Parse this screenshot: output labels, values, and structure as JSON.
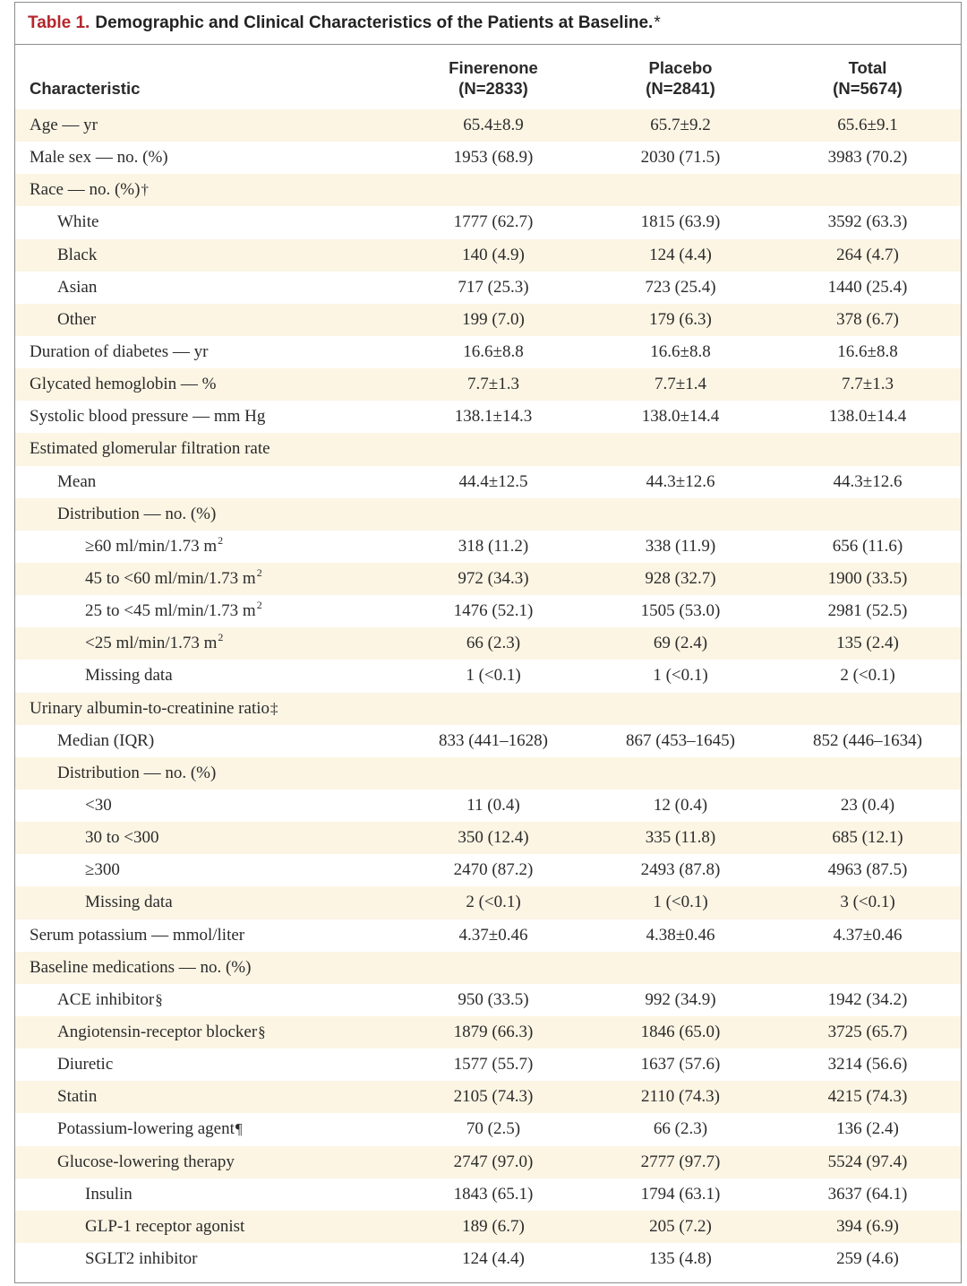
{
  "title": {
    "number": "Table 1.",
    "text": "Demographic and Clinical Characteristics of the Patients at Baseline.",
    "footnote_mark": "*"
  },
  "header": {
    "characteristic": "Characteristic",
    "columns": [
      {
        "name": "Finerenone",
        "n": "(N=2833)"
      },
      {
        "name": "Placebo",
        "n": "(N=2841)"
      },
      {
        "name": "Total",
        "n": "(N=5674)"
      }
    ]
  },
  "rows": [
    {
      "label": "Age — yr",
      "level": 0,
      "values": [
        "65.4±8.9",
        "65.7±9.2",
        "65.6±9.1"
      ]
    },
    {
      "label": "Male sex — no. (%)",
      "level": 0,
      "values": [
        "1953 (68.9)",
        "2030 (71.5)",
        "3983 (70.2)"
      ]
    },
    {
      "label": "Race — no. (%)",
      "mark": "†",
      "level": 0,
      "values": [
        "",
        "",
        ""
      ]
    },
    {
      "label": "White",
      "level": 1,
      "values": [
        "1777 (62.7)",
        "1815 (63.9)",
        "3592 (63.3)"
      ]
    },
    {
      "label": "Black",
      "level": 1,
      "values": [
        "140 (4.9)",
        "124 (4.4)",
        "264 (4.7)"
      ]
    },
    {
      "label": "Asian",
      "level": 1,
      "values": [
        "717 (25.3)",
        "723 (25.4)",
        "1440 (25.4)"
      ]
    },
    {
      "label": "Other",
      "level": 1,
      "values": [
        "199 (7.0)",
        "179 (6.3)",
        "378 (6.7)"
      ]
    },
    {
      "label": "Duration of diabetes — yr",
      "level": 0,
      "values": [
        "16.6±8.8",
        "16.6±8.8",
        "16.6±8.8"
      ]
    },
    {
      "label": "Glycated hemoglobin — %",
      "level": 0,
      "values": [
        "7.7±1.3",
        "7.7±1.4",
        "7.7±1.3"
      ]
    },
    {
      "label": "Systolic blood pressure — mm Hg",
      "level": 0,
      "values": [
        "138.1±14.3",
        "138.0±14.4",
        "138.0±14.4"
      ]
    },
    {
      "label": "Estimated glomerular filtration rate",
      "level": 0,
      "values": [
        "",
        "",
        ""
      ]
    },
    {
      "label": "Mean",
      "level": 1,
      "values": [
        "44.4±12.5",
        "44.3±12.6",
        "44.3±12.6"
      ]
    },
    {
      "label": "Distribution — no. (%)",
      "level": 1,
      "values": [
        "",
        "",
        ""
      ]
    },
    {
      "label": "≥60 ml/min/1.73 m",
      "sup": "2",
      "level": 2,
      "values": [
        "318 (11.2)",
        "338 (11.9)",
        "656 (11.6)"
      ]
    },
    {
      "label": "45 to <60 ml/min/1.73 m",
      "sup": "2",
      "level": 2,
      "values": [
        "972 (34.3)",
        "928 (32.7)",
        "1900 (33.5)"
      ]
    },
    {
      "label": "25 to <45 ml/min/1.73 m",
      "sup": "2",
      "level": 2,
      "values": [
        "1476 (52.1)",
        "1505 (53.0)",
        "2981 (52.5)"
      ]
    },
    {
      "label": "<25 ml/min/1.73 m",
      "sup": "2",
      "level": 2,
      "values": [
        "66 (2.3)",
        "69 (2.4)",
        "135 (2.4)"
      ]
    },
    {
      "label": "Missing data",
      "level": 2,
      "values": [
        "1 (<0.1)",
        "1 (<0.1)",
        "2 (<0.1)"
      ]
    },
    {
      "label": "Urinary albumin-to-creatinine ratio",
      "mark": "‡",
      "level": 0,
      "values": [
        "",
        "",
        ""
      ]
    },
    {
      "label": "Median (IQR)",
      "level": 1,
      "values": [
        "833 (441–1628)",
        "867 (453–1645)",
        "852 (446–1634)"
      ]
    },
    {
      "label": "Distribution — no. (%)",
      "level": 1,
      "values": [
        "",
        "",
        ""
      ]
    },
    {
      "label": "<30",
      "level": 2,
      "values": [
        "11 (0.4)",
        "12 (0.4)",
        "23 (0.4)"
      ]
    },
    {
      "label": "30 to <300",
      "level": 2,
      "values": [
        "350 (12.4)",
        "335 (11.8)",
        "685 (12.1)"
      ]
    },
    {
      "label": "≥300",
      "level": 2,
      "values": [
        "2470 (87.2)",
        "2493 (87.8)",
        "4963 (87.5)"
      ]
    },
    {
      "label": "Missing data",
      "level": 2,
      "values": [
        "2 (<0.1)",
        "1 (<0.1)",
        "3 (<0.1)"
      ]
    },
    {
      "label": "Serum potassium — mmol/liter",
      "level": 0,
      "values": [
        "4.37±0.46",
        "4.38±0.46",
        "4.37±0.46"
      ]
    },
    {
      "label": "Baseline medications — no. (%)",
      "level": 0,
      "values": [
        "",
        "",
        ""
      ]
    },
    {
      "label": "ACE inhibitor",
      "mark": "§",
      "level": 1,
      "values": [
        "950 (33.5)",
        "992 (34.9)",
        "1942 (34.2)"
      ]
    },
    {
      "label": "Angiotensin-receptor blocker",
      "mark": "§",
      "level": 1,
      "values": [
        "1879 (66.3)",
        "1846 (65.0)",
        "3725 (65.7)"
      ]
    },
    {
      "label": "Diuretic",
      "level": 1,
      "values": [
        "1577 (55.7)",
        "1637 (57.6)",
        "3214 (56.6)"
      ]
    },
    {
      "label": "Statin",
      "level": 1,
      "values": [
        "2105 (74.3)",
        "2110 (74.3)",
        "4215 (74.3)"
      ]
    },
    {
      "label": "Potassium-lowering agent",
      "mark": "¶",
      "level": 1,
      "values": [
        "70 (2.5)",
        "66 (2.3)",
        "136 (2.4)"
      ]
    },
    {
      "label": "Glucose-lowering therapy",
      "level": 1,
      "values": [
        "2747 (97.0)",
        "2777 (97.7)",
        "5524 (97.4)"
      ]
    },
    {
      "label": "Insulin",
      "level": 2,
      "values": [
        "1843 (65.1)",
        "1794 (63.1)",
        "3637 (64.1)"
      ]
    },
    {
      "label": "GLP-1 receptor agonist",
      "level": 2,
      "values": [
        "189 (6.7)",
        "205 (7.2)",
        "394 (6.9)"
      ]
    },
    {
      "label": "SGLT2 inhibitor",
      "level": 2,
      "values": [
        "124 (4.4)",
        "135 (4.8)",
        "259 (4.6)"
      ]
    }
  ],
  "colors": {
    "title_number": "#b5262c",
    "row_shade": "#fcf5e4",
    "border": "#8c8c8c"
  }
}
